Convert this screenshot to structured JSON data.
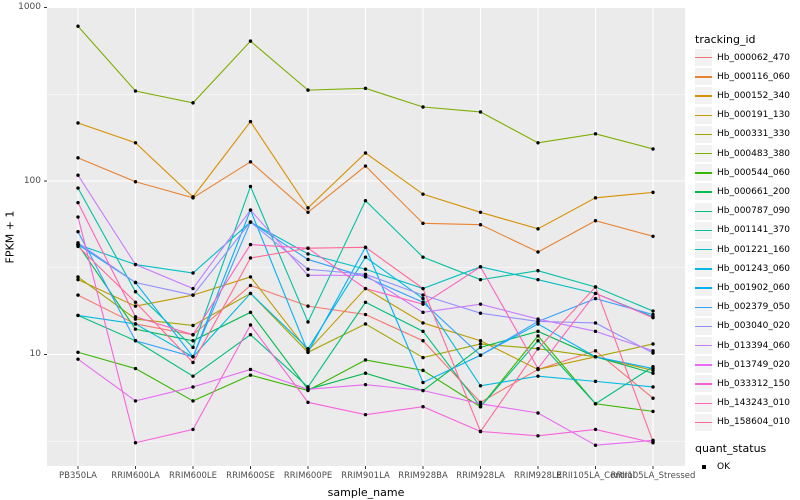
{
  "chart_data": {
    "type": "line",
    "title": "",
    "xlabel": "sample_name",
    "ylabel": "FPKM + 1",
    "yscale": "log10",
    "ylim": [
      2.28,
      1000
    ],
    "yticks": [
      10,
      100,
      1000
    ],
    "ytick_labels": [
      "10",
      "100",
      "1000"
    ],
    "yminor_ticks": [
      3.162,
      31.62,
      316.23
    ],
    "grid": true,
    "panel_bg": "#EBEBEB",
    "grid_color": "#FFFFFF",
    "point_color": "#000000",
    "legend_position": "right",
    "categories": [
      "PB350LA",
      "RRIM600LA",
      "RRIM600LE",
      "RRIM600SE",
      "RRIM600PE",
      "RRIM901LA",
      "RRIM928BA",
      "RRIM928LA",
      "RRIM928LE",
      "RRII105LA_Control",
      "RRII105LA_Stressed"
    ],
    "series": [
      {
        "name": "Hb_000062_470",
        "color": "#F8766D",
        "values": [
          22,
          15,
          13,
          25,
          19,
          17,
          12,
          5.3,
          8.2,
          10.5,
          5.6
        ]
      },
      {
        "name": "Hb_000116_060",
        "color": "#EA8331",
        "values": [
          136,
          99,
          80,
          129,
          66,
          122,
          57,
          56,
          39,
          59,
          48
        ]
      },
      {
        "name": "Hb_000152_340",
        "color": "#D89000",
        "values": [
          216,
          166,
          81,
          220,
          70,
          145,
          84,
          66,
          53,
          80,
          86
        ]
      },
      {
        "name": "Hb_000191_130",
        "color": "#C09B00",
        "values": [
          27,
          19,
          22,
          28,
          10.5,
          24,
          15.2,
          12,
          8.2,
          9.7,
          8.1
        ]
      },
      {
        "name": "Hb_000331_330",
        "color": "#A3A500",
        "values": [
          28,
          16,
          14.7,
          22.5,
          10.3,
          15,
          9.6,
          11.5,
          10.8,
          9.7,
          11.5
        ]
      },
      {
        "name": "Hb_000483_380",
        "color": "#7CAE00",
        "values": [
          780,
          330,
          282,
          640,
          334,
          342,
          267,
          250,
          166,
          187,
          153
        ]
      },
      {
        "name": "Hb_000544_060",
        "color": "#39B600",
        "values": [
          10.3,
          8.3,
          5.4,
          7.6,
          6.2,
          9.3,
          8.1,
          5,
          12.8,
          5.2,
          4.7
        ]
      },
      {
        "name": "Hb_000661_200",
        "color": "#00BB4E",
        "values": [
          43,
          14,
          12,
          17.5,
          6.3,
          7.8,
          6.2,
          11,
          13.6,
          9.7,
          7.8
        ]
      },
      {
        "name": "Hb_000787_090",
        "color": "#00BF7D",
        "values": [
          16.8,
          12,
          7.5,
          13,
          6.5,
          20,
          13.6,
          5,
          12,
          5.2,
          8.5
        ]
      },
      {
        "name": "Hb_001141_370",
        "color": "#00C1A3",
        "values": [
          91,
          23,
          11,
          93,
          15.4,
          77,
          36.4,
          27,
          30.4,
          24.5,
          17.8
        ]
      },
      {
        "name": "Hb_001221_160",
        "color": "#00BFC4",
        "values": [
          43,
          33,
          29.5,
          58,
          38,
          31,
          24,
          32,
          27,
          22.5,
          16.5
        ]
      },
      {
        "name": "Hb_001243_060",
        "color": "#00BAE0",
        "values": [
          16.8,
          15,
          9.7,
          22.5,
          10.8,
          36.4,
          21,
          6.6,
          7.5,
          7,
          6.5
        ]
      },
      {
        "name": "Hb_001902_060",
        "color": "#00B0F6",
        "values": [
          43,
          26,
          9.7,
          68,
          10.3,
          41.5,
          6.9,
          9.9,
          15,
          9.7,
          8.3
        ]
      },
      {
        "name": "Hb_002379_050",
        "color": "#35A2FF",
        "values": [
          51,
          12,
          9.7,
          58,
          35.3,
          28,
          20,
          9.9,
          15.5,
          21,
          17
        ]
      },
      {
        "name": "Hb_003040_020",
        "color": "#9590FF",
        "values": [
          44,
          26,
          22,
          58,
          31,
          29,
          22,
          17.3,
          15.5,
          15.2,
          10.2
        ]
      },
      {
        "name": "Hb_013394_060",
        "color": "#C77CFF",
        "values": [
          108,
          33,
          24,
          68,
          28.6,
          28.6,
          17.5,
          19.5,
          16,
          13.6,
          10.5
        ]
      },
      {
        "name": "Hb_013749_020",
        "color": "#E76BF3",
        "values": [
          9.4,
          5.4,
          6.5,
          8.2,
          6.3,
          6.7,
          6.2,
          5.2,
          4.6,
          3,
          3.2
        ]
      },
      {
        "name": "Hb_033312_150",
        "color": "#FA62DB",
        "values": [
          62,
          3.1,
          3.7,
          14.8,
          5.3,
          4.5,
          5,
          3.6,
          3.4,
          3.7,
          3.1
        ]
      },
      {
        "name": "Hb_143243_010",
        "color": "#FF62BC",
        "values": [
          75,
          16.5,
          13,
          43,
          41,
          24,
          19.5,
          32,
          8.3,
          22.5,
          16.3
        ]
      },
      {
        "name": "Hb_158604_010",
        "color": "#FF6A98",
        "values": [
          42,
          20,
          9,
          36,
          41,
          41.5,
          24,
          3.6,
          10.8,
          24.5,
          3.15
        ]
      }
    ],
    "legend": {
      "color_title": "tracking_id",
      "shape_title": "quant_status",
      "shape_items": [
        {
          "label": "OK"
        }
      ]
    }
  }
}
